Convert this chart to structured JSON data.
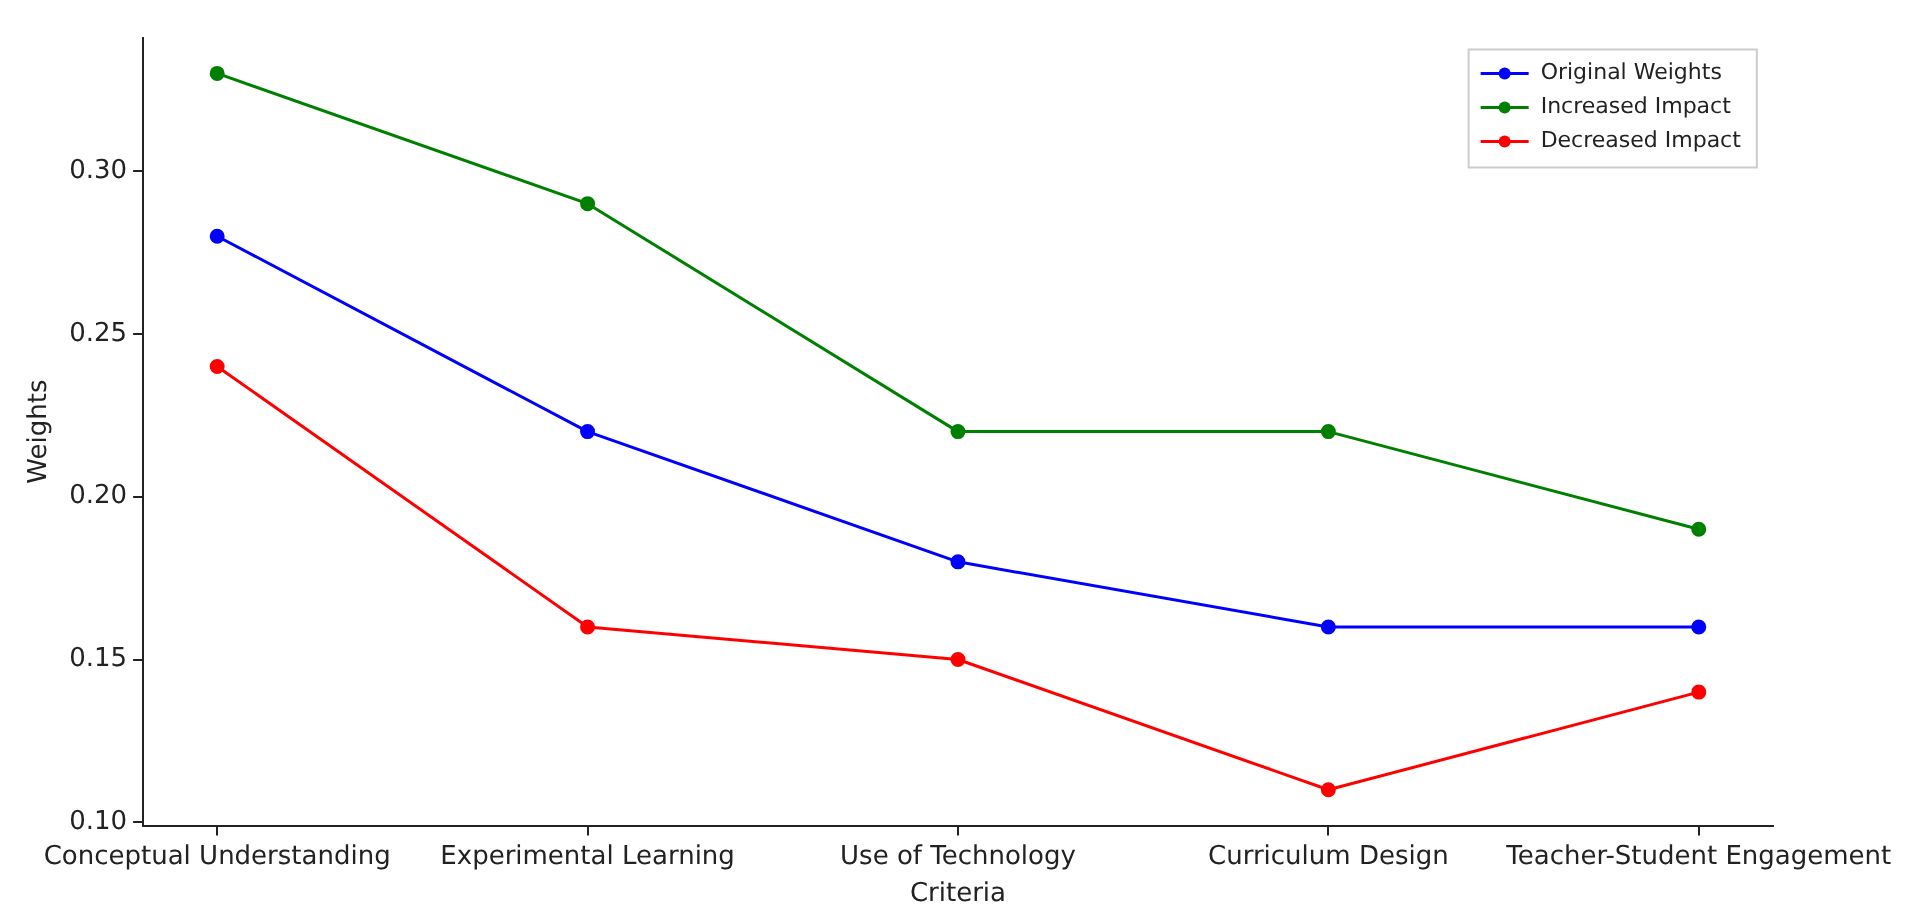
{
  "chart_data": {
    "type": "line",
    "xlabel": "Criteria",
    "ylabel": "Weights",
    "categories": [
      "Conceptual Understanding",
      "Experimental Learning",
      "Use of Technology",
      "Curriculum Design",
      "Teacher-Student Engagement"
    ],
    "series": [
      {
        "name": "Original Weights",
        "color": "#0000ff",
        "values": [
          0.28,
          0.22,
          0.18,
          0.16,
          0.16
        ]
      },
      {
        "name": "Increased Impact",
        "color": "#008000",
        "values": [
          0.33,
          0.29,
          0.22,
          0.22,
          0.19
        ]
      },
      {
        "name": "Decreased Impact",
        "color": "#ff0000",
        "values": [
          0.24,
          0.16,
          0.15,
          0.11,
          0.14
        ]
      }
    ],
    "ylim": [
      0.099,
      0.341
    ],
    "yticks": [
      {
        "value": 0.1,
        "label": "0.10"
      },
      {
        "value": 0.15,
        "label": "0.15"
      },
      {
        "value": 0.2,
        "label": "0.20"
      },
      {
        "value": 0.25,
        "label": "0.25"
      },
      {
        "value": 0.3,
        "label": "0.30"
      }
    ],
    "grid": false,
    "legend": "top right",
    "marker": "circle",
    "line_style": "solid"
  }
}
